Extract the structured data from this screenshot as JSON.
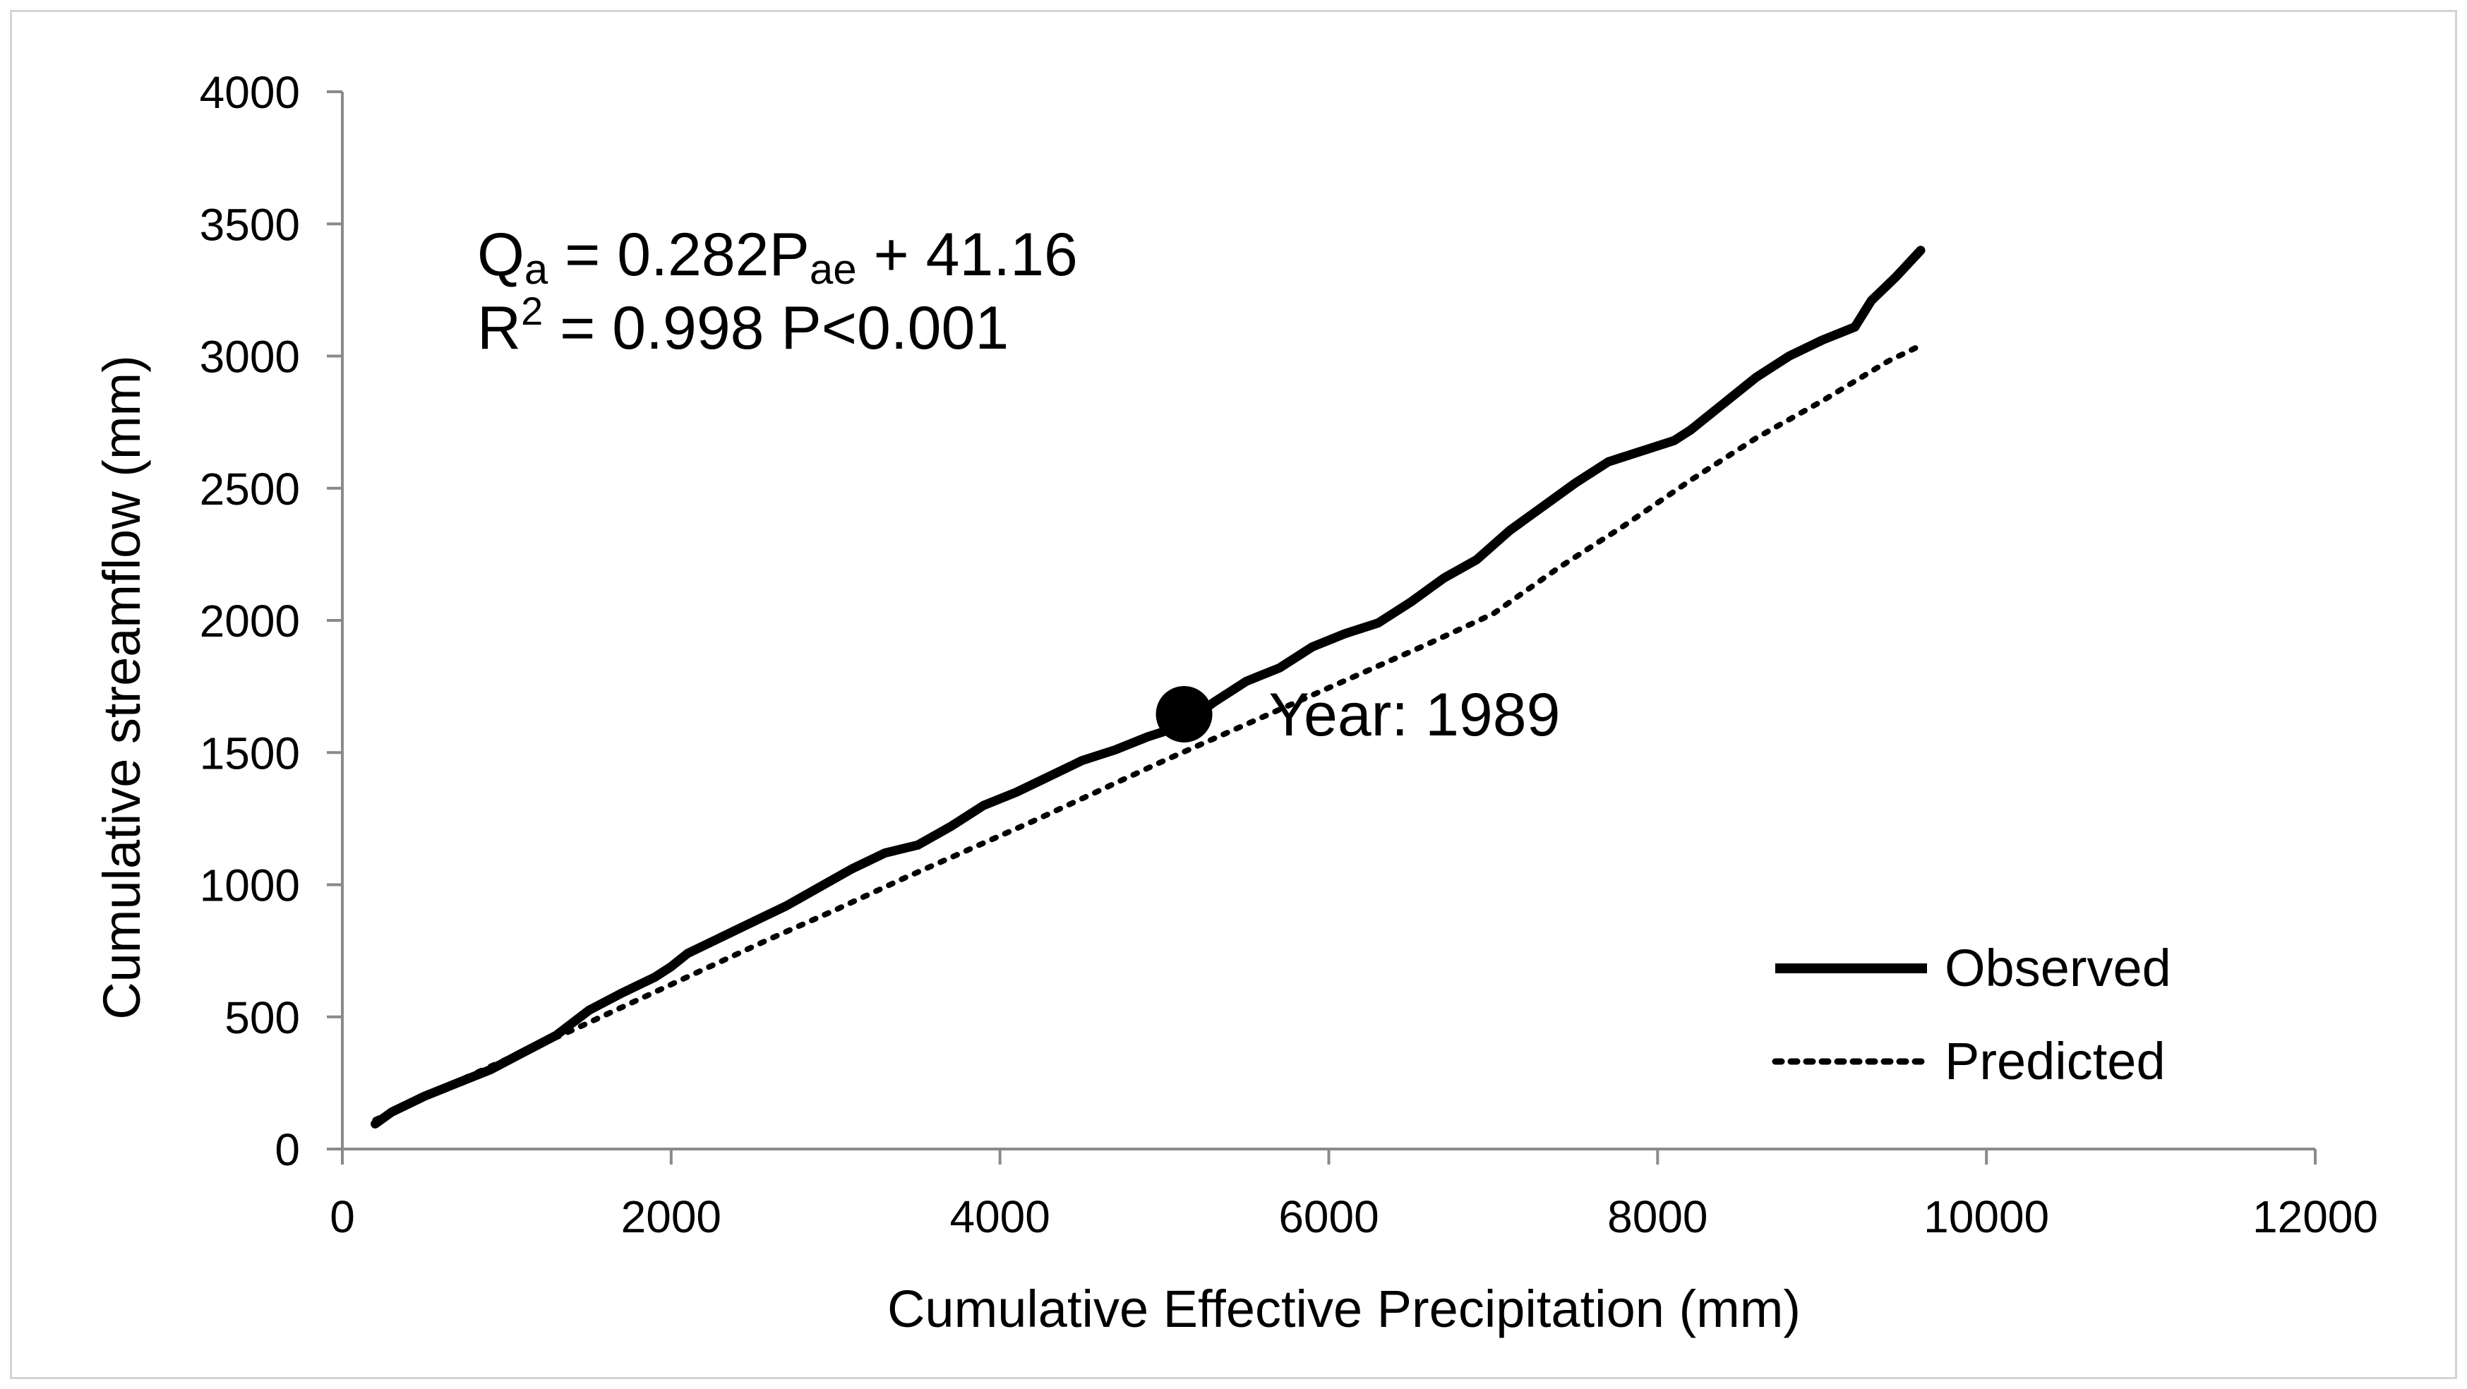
{
  "chart_data": {
    "type": "line",
    "title": "",
    "xlabel": "Cumulative Effective Precipitation (mm)",
    "ylabel": "Cumulative streamflow  (mm)",
    "xlim": [
      0,
      12000
    ],
    "ylim": [
      0,
      4000
    ],
    "xticks": [
      0,
      2000,
      4000,
      6000,
      8000,
      10000,
      12000
    ],
    "yticks": [
      0,
      500,
      1000,
      1500,
      2000,
      2500,
      3000,
      3500,
      4000
    ],
    "grid": false,
    "legend_position": "bottom-right",
    "equation": {
      "line1_prefix": "Q",
      "line1_sub": "a",
      "line1_mid": " = 0.282P",
      "line1_sub2": "ae",
      "line1_suffix": " + 41.16",
      "line2_prefix": "R",
      "line2_sup": "2",
      "line2_suffix": " = 0.998 P<0.001"
    },
    "annotation": {
      "label": "Year: 1989",
      "x": 5120,
      "y": 1645
    },
    "series": [
      {
        "name": "Observed",
        "style": "solid",
        "color": "#000000",
        "x": [
          200,
          300,
          500,
          700,
          900,
          1100,
          1300,
          1500,
          1700,
          1900,
          2000,
          2100,
          2300,
          2500,
          2700,
          2900,
          3100,
          3300,
          3500,
          3700,
          3900,
          4100,
          4300,
          4500,
          4700,
          4900,
          5100,
          5300,
          5500,
          5700,
          5900,
          6100,
          6300,
          6500,
          6700,
          6900,
          7100,
          7300,
          7500,
          7700,
          7900,
          8100,
          8200,
          8400,
          8600,
          8800,
          9000,
          9200,
          9300,
          9450,
          9600
        ],
        "values": [
          95,
          140,
          200,
          250,
          300,
          365,
          430,
          525,
          590,
          650,
          690,
          740,
          800,
          860,
          920,
          990,
          1060,
          1120,
          1150,
          1220,
          1300,
          1350,
          1410,
          1470,
          1510,
          1560,
          1600,
          1690,
          1770,
          1820,
          1900,
          1950,
          1990,
          2070,
          2160,
          2230,
          2340,
          2430,
          2520,
          2600,
          2640,
          2680,
          2720,
          2820,
          2920,
          3000,
          3060,
          3110,
          3210,
          3300,
          3400
        ]
      },
      {
        "name": "Predicted",
        "style": "dotted",
        "color": "#000000",
        "x": [
          200,
          600,
          1000,
          1400,
          1800,
          2200,
          2600,
          3000,
          3400,
          3800,
          4200,
          4600,
          5000,
          5400,
          5800,
          6200,
          6600,
          7000,
          7400,
          7800,
          8200,
          8600,
          9000,
          9400,
          9600
        ],
        "values": [
          110,
          228,
          340,
          450,
          565,
          680,
          795,
          905,
          1020,
          1130,
          1240,
          1355,
          1470,
          1580,
          1690,
          1800,
          1910,
          2025,
          2200,
          2360,
          2530,
          2690,
          2830,
          2980,
          3040
        ]
      }
    ]
  }
}
